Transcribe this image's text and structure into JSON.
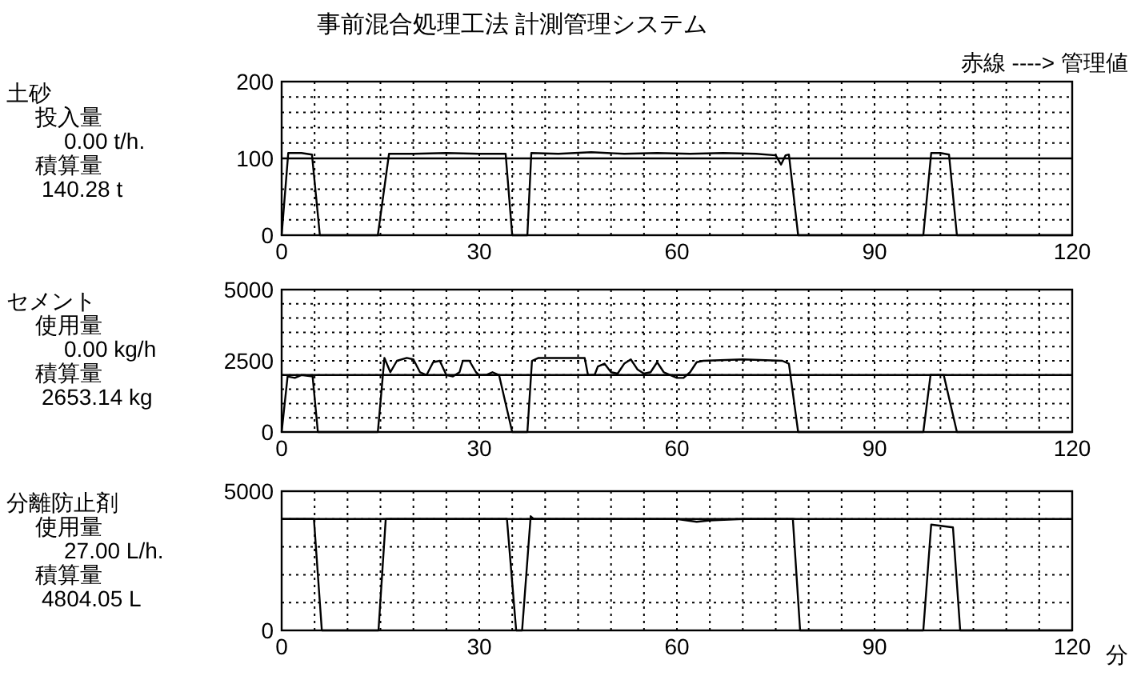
{
  "chart_data": [
    {
      "type": "line",
      "title": "事前混合処理工法 計測管理システム",
      "subtitle": "赤線 ----> 管理値",
      "annotations": [
        "土砂",
        "投入量",
        "0.00 t/h.",
        "積算量",
        "140.28 t"
      ],
      "xlim": [
        0,
        120
      ],
      "xticks": [
        0,
        {
          "value": 5,
          "label": null
        },
        {
          "value": 10,
          "label": null
        },
        {
          "value": 15,
          "label": null
        },
        {
          "value": 20,
          "label": null
        },
        {
          "value": 25,
          "label": null
        },
        30,
        {
          "value": 35,
          "label": null
        },
        {
          "value": 40,
          "label": null
        },
        {
          "value": 45,
          "label": null
        },
        {
          "value": 50,
          "label": null
        },
        {
          "value": 55,
          "label": null
        },
        60,
        {
          "value": 65,
          "label": null
        },
        {
          "value": 70,
          "label": null
        },
        {
          "value": 75,
          "label": null
        },
        {
          "value": 80,
          "label": null
        },
        {
          "value": 85,
          "label": null
        },
        90,
        {
          "value": 95,
          "label": null
        },
        {
          "value": 100,
          "label": null
        },
        {
          "value": 105,
          "label": null
        },
        {
          "value": 110,
          "label": null
        },
        {
          "value": 115,
          "label": null
        },
        120
      ],
      "ylim": [
        0,
        200
      ],
      "yticks": [
        0,
        {
          "value": 20,
          "label": null
        },
        {
          "value": 40,
          "label": null
        },
        {
          "value": 60,
          "label": null
        },
        {
          "value": 80,
          "label": null
        },
        100,
        {
          "value": 120,
          "label": null
        },
        {
          "value": 140,
          "label": null
        },
        {
          "value": 160,
          "label": null
        },
        {
          "value": 180,
          "label": null
        },
        200
      ],
      "grid": true,
      "ref_lines": [
        {
          "axis": "y",
          "value": 100,
          "color": "#000000"
        }
      ],
      "series": [
        {
          "color": "#000000",
          "x": [
            0,
            1,
            3,
            4.6,
            5.8,
            14.6,
            16.3,
            20,
            25,
            30,
            34,
            35,
            37.3,
            37.9,
            42,
            47,
            52,
            57,
            62,
            67,
            72,
            75,
            75.8,
            76.5,
            77,
            78.4,
            97.4,
            98.6,
            100,
            101.3,
            102.5,
            120
          ],
          "values": [
            0,
            107,
            107,
            105,
            0,
            0,
            106,
            106,
            107,
            106,
            106,
            0,
            0,
            107,
            106,
            108,
            106,
            107,
            106,
            107,
            106,
            104,
            92,
            104,
            105,
            0,
            0,
            107,
            107,
            105,
            0,
            0
          ]
        }
      ]
    },
    {
      "type": "line",
      "annotations": [
        "セメント",
        "使用量",
        "0.00 kg/h",
        "積算量",
        "2653.14 kg"
      ],
      "xlim": [
        0,
        120
      ],
      "xticks": [
        0,
        {
          "value": 5,
          "label": null
        },
        {
          "value": 10,
          "label": null
        },
        {
          "value": 15,
          "label": null
        },
        {
          "value": 20,
          "label": null
        },
        {
          "value": 25,
          "label": null
        },
        30,
        {
          "value": 35,
          "label": null
        },
        {
          "value": 40,
          "label": null
        },
        {
          "value": 45,
          "label": null
        },
        {
          "value": 50,
          "label": null
        },
        {
          "value": 55,
          "label": null
        },
        60,
        {
          "value": 65,
          "label": null
        },
        {
          "value": 70,
          "label": null
        },
        {
          "value": 75,
          "label": null
        },
        {
          "value": 80,
          "label": null
        },
        {
          "value": 85,
          "label": null
        },
        90,
        {
          "value": 95,
          "label": null
        },
        {
          "value": 100,
          "label": null
        },
        {
          "value": 105,
          "label": null
        },
        {
          "value": 110,
          "label": null
        },
        {
          "value": 115,
          "label": null
        },
        120
      ],
      "ylim": [
        0,
        5000
      ],
      "yticks": [
        0,
        {
          "value": 500,
          "label": null
        },
        {
          "value": 1000,
          "label": null
        },
        {
          "value": 1500,
          "label": null
        },
        {
          "value": 2000,
          "label": null
        },
        2500,
        {
          "value": 3000,
          "label": null
        },
        {
          "value": 3500,
          "label": null
        },
        {
          "value": 4000,
          "label": null
        },
        {
          "value": 4500,
          "label": null
        },
        5000
      ],
      "grid": true,
      "ref_lines": [
        {
          "axis": "y",
          "value": 2000,
          "color": "#000000"
        }
      ],
      "series": [
        {
          "color": "#000000",
          "x": [
            0,
            0.9,
            2,
            3,
            4.7,
            5.5,
            14.6,
            15.6,
            16.5,
            17.5,
            19,
            20,
            21,
            22,
            23,
            24,
            25,
            26,
            27,
            27.5,
            28.5,
            29.5,
            30,
            31,
            32,
            33,
            35,
            37.3,
            38,
            39,
            46,
            46.5,
            47.5,
            48,
            49,
            50,
            51,
            52,
            53,
            54,
            55,
            56,
            57,
            58,
            59,
            60,
            61,
            62,
            63,
            64,
            70,
            76,
            77,
            78.4,
            97.4,
            98.5,
            100.5,
            102.5,
            120
          ],
          "values": [
            0,
            1950,
            1900,
            2000,
            1950,
            0,
            0,
            2600,
            2100,
            2500,
            2600,
            2550,
            2100,
            2000,
            2450,
            2500,
            2000,
            1950,
            2100,
            2500,
            2500,
            2100,
            2000,
            2000,
            2100,
            2000,
            0,
            0,
            2500,
            2600,
            2600,
            2000,
            2000,
            2300,
            2400,
            2100,
            2050,
            2400,
            2550,
            2200,
            2050,
            2100,
            2450,
            2100,
            2000,
            1900,
            1900,
            2100,
            2450,
            2500,
            2550,
            2500,
            2400,
            0,
            0,
            2000,
            2000,
            0,
            0
          ]
        }
      ]
    },
    {
      "type": "line",
      "xlabel": "分",
      "annotations": [
        "分離防止剤",
        "使用量",
        "27.00 L/h.",
        "積算量",
        "4804.05 L"
      ],
      "xlim": [
        0,
        120
      ],
      "xticks": [
        0,
        {
          "value": 5,
          "label": null
        },
        {
          "value": 10,
          "label": null
        },
        {
          "value": 15,
          "label": null
        },
        {
          "value": 20,
          "label": null
        },
        {
          "value": 25,
          "label": null
        },
        30,
        {
          "value": 35,
          "label": null
        },
        {
          "value": 40,
          "label": null
        },
        {
          "value": 45,
          "label": null
        },
        {
          "value": 50,
          "label": null
        },
        {
          "value": 55,
          "label": null
        },
        60,
        {
          "value": 65,
          "label": null
        },
        {
          "value": 70,
          "label": null
        },
        {
          "value": 75,
          "label": null
        },
        {
          "value": 80,
          "label": null
        },
        {
          "value": 85,
          "label": null
        },
        90,
        {
          "value": 95,
          "label": null
        },
        {
          "value": 100,
          "label": null
        },
        {
          "value": 105,
          "label": null
        },
        {
          "value": 110,
          "label": null
        },
        {
          "value": 115,
          "label": null
        },
        120
      ],
      "ylim": [
        0,
        5000
      ],
      "yticks": [
        0,
        {
          "value": 1000,
          "label": null
        },
        {
          "value": 2000,
          "label": null
        },
        {
          "value": 3000,
          "label": null
        },
        {
          "value": 4000,
          "label": null
        },
        5000
      ],
      "grid": true,
      "ref_lines": [
        {
          "axis": "y",
          "value": 4000,
          "color": "#000000"
        }
      ],
      "series": [
        {
          "color": "#000000",
          "x": [
            0,
            4.9,
            6.1,
            14.7,
            15.8,
            25,
            34.2,
            35.6,
            36.5,
            37.8,
            38.3,
            45,
            55,
            60,
            63,
            65,
            70,
            77.6,
            78.7,
            97.4,
            98.6,
            101.9,
            103,
            120
          ],
          "values": [
            4000,
            4000,
            0,
            0,
            4000,
            4000,
            4000,
            0,
            0,
            4100,
            4000,
            4000,
            4000,
            4000,
            3900,
            3950,
            4000,
            4000,
            0,
            0,
            3800,
            3700,
            0,
            0
          ]
        }
      ]
    }
  ]
}
